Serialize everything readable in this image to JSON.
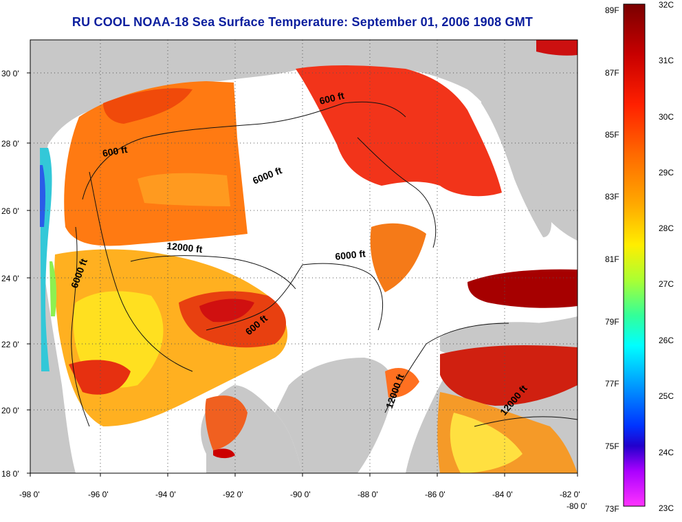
{
  "title": "RU COOL  NOAA-18  Sea Surface Temperature:  September 01, 2006 1908 GMT",
  "axes": {
    "x_ticks": [
      "-98 0'",
      "-96 0'",
      "-94 0'",
      "-92 0'",
      "-90 0'",
      "-88 0'",
      "-86 0'",
      "-84 0'",
      "-82 0'",
      "-80 0'"
    ],
    "y_ticks": [
      "30 0'",
      "28 0'",
      "26 0'",
      "24 0'",
      "22 0'",
      "20 0'",
      "18 0'"
    ],
    "grid": "dotted"
  },
  "contour_labels": [
    "600 ft",
    "600 ft",
    "600 ft",
    "6000 ft",
    "6000 ft",
    "6000 ft",
    "12000 ft",
    "12000 ft",
    "12000 ft"
  ],
  "colorbar": {
    "fahrenheit": [
      "89F",
      "87F",
      "85F",
      "83F",
      "81F",
      "79F",
      "77F",
      "75F",
      "73F"
    ],
    "celsius": [
      "32C",
      "31C",
      "30C",
      "29C",
      "28C",
      "27C",
      "26C",
      "25C",
      "24C",
      "23C"
    ],
    "colors": [
      "#7a0000",
      "#c80000",
      "#ff2000",
      "#ff6a00",
      "#ffaa00",
      "#ffee00",
      "#aaff33",
      "#33ff99",
      "#00ffff",
      "#0099ff",
      "#0033ff",
      "#2200cc",
      "#aa00ff",
      "#ff33ff"
    ]
  },
  "colors": {
    "land": "#c8c8c8",
    "cloud": "#ffffff",
    "title": "#0b1e9e"
  }
}
